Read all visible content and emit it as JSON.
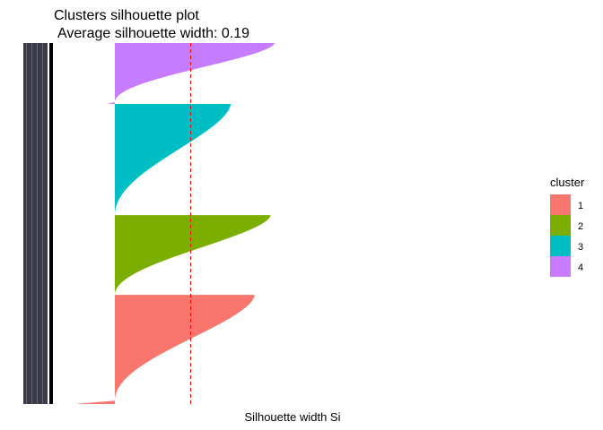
{
  "chart_data": {
    "type": "bar",
    "title": "Clusters silhouette plot",
    "subtitle": "Average silhouette width: 0.19",
    "xlabel": "Silhouette width Si",
    "ylabel": "",
    "average_silhouette": 0.19,
    "ylim": [
      -0.1,
      0.4
    ],
    "grid": false,
    "legend": {
      "title": "cluster",
      "position": "right"
    },
    "series": [
      {
        "name": "1",
        "color": "#F8766D",
        "count": 260,
        "max": 0.35,
        "min": -0.1,
        "negative_count": 8
      },
      {
        "name": "2",
        "color": "#7CAE00",
        "count": 190,
        "max": 0.39,
        "min": 0.0,
        "negative_count": 0
      },
      {
        "name": "3",
        "color": "#00BFC4",
        "count": 265,
        "max": 0.29,
        "min": 0.0,
        "negative_count": 0
      },
      {
        "name": "4",
        "color": "#C77CFF",
        "count": 145,
        "max": 0.4,
        "min": -0.02,
        "negative_count": 4
      }
    ]
  }
}
